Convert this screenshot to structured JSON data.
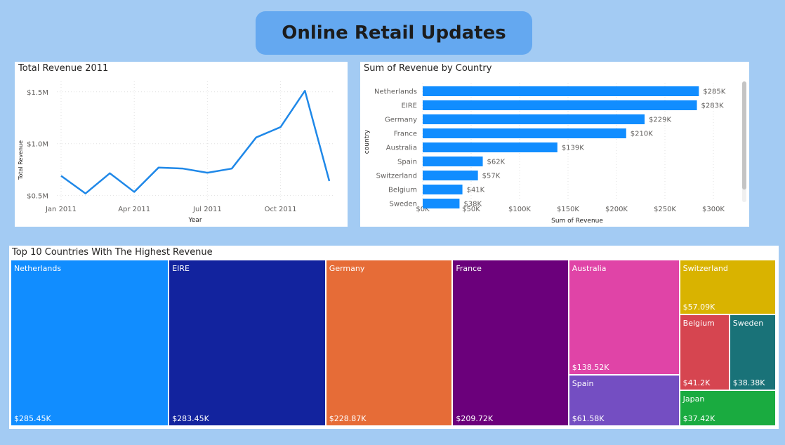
{
  "dashboard_title": "Online Retail Updates",
  "colors": {
    "background": "#a3cbf3",
    "title_pill": "#64a8f0",
    "line": "#1f88e8",
    "bar": "#118dff"
  },
  "chart_data": [
    {
      "type": "line",
      "title": "Total Revenue 2011",
      "xlabel": "Year",
      "ylabel": "Total Revenue",
      "x": [
        "2011-01",
        "2011-02",
        "2011-03",
        "2011-04",
        "2011-05",
        "2011-06",
        "2011-07",
        "2011-08",
        "2011-09",
        "2011-10",
        "2011-11",
        "2011-12"
      ],
      "values": [
        690000,
        520000,
        715000,
        535000,
        770000,
        760000,
        720000,
        760000,
        1060000,
        1160000,
        1510000,
        640000
      ],
      "x_ticks": [
        "Jan 2011",
        "Apr 2011",
        "Jul 2011",
        "Oct 2011"
      ],
      "y_ticks": [
        "$0.5M",
        "$1.0M",
        "$1.5M"
      ],
      "ylim": [
        0.45,
        1.6
      ],
      "grid": true
    },
    {
      "type": "bar",
      "orientation": "horizontal",
      "title": "Sum of Revenue by Country",
      "xlabel": "Sum of Revenue",
      "ylabel": "country",
      "categories": [
        "Netherlands",
        "EIRE",
        "Germany",
        "France",
        "Australia",
        "Spain",
        "Switzerland",
        "Belgium",
        "Sweden"
      ],
      "values": [
        285,
        283,
        229,
        210,
        139,
        62,
        57,
        41,
        38
      ],
      "value_labels": [
        "$285K",
        "$283K",
        "$229K",
        "$210K",
        "$139K",
        "$62K",
        "$57K",
        "$41K",
        "$38K"
      ],
      "x_ticks": [
        "$0K",
        "$50K",
        "$100K",
        "$150K",
        "$200K",
        "$250K",
        "$300K"
      ],
      "xlim": [
        0,
        300
      ],
      "grid": true
    },
    {
      "type": "treemap",
      "title": "Top 10 Countries With The Highest Revenue",
      "items": [
        {
          "name": "Netherlands",
          "value": 285.45,
          "label": "$285.45K",
          "color": "#118dff"
        },
        {
          "name": "EIRE",
          "value": 283.45,
          "label": "$283.45K",
          "color": "#12239e"
        },
        {
          "name": "Germany",
          "value": 228.87,
          "label": "$228.87K",
          "color": "#e66c37"
        },
        {
          "name": "France",
          "value": 209.72,
          "label": "$209.72K",
          "color": "#6b007b"
        },
        {
          "name": "Australia",
          "value": 138.52,
          "label": "$138.52K",
          "color": "#e044a7"
        },
        {
          "name": "Spain",
          "value": 61.58,
          "label": "$61.58K",
          "color": "#744ec2"
        },
        {
          "name": "Switzerland",
          "value": 57.09,
          "label": "$57.09K",
          "color": "#d9b300"
        },
        {
          "name": "Belgium",
          "value": 41.2,
          "label": "$41.2K",
          "color": "#d64550"
        },
        {
          "name": "Sweden",
          "value": 38.38,
          "label": "$38.38K",
          "color": "#197278"
        },
        {
          "name": "Japan",
          "value": 37.42,
          "label": "$37.42K",
          "color": "#1aab40"
        }
      ]
    }
  ]
}
